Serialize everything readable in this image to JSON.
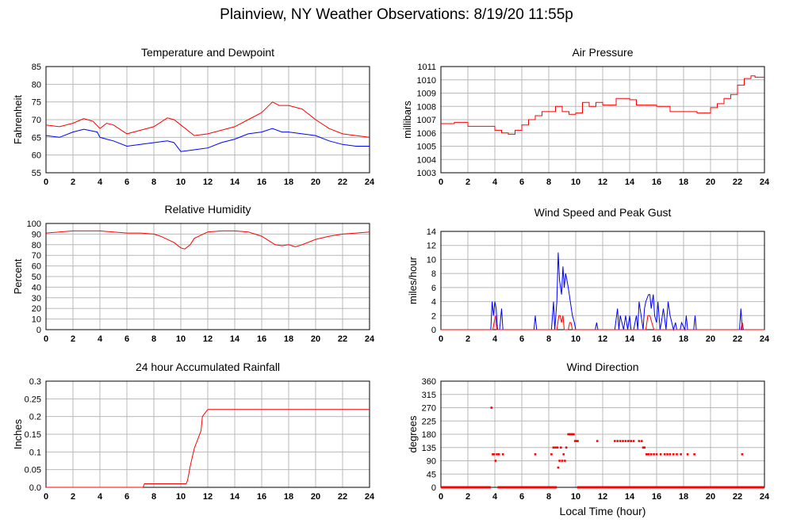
{
  "page": {
    "title": "Plainview, NY Weather Observations: 8/19/20 11:55p"
  },
  "chart_data": [
    {
      "id": "temp",
      "type": "line",
      "title": "Temperature and Dewpoint",
      "ylabel": "Fahrenheit",
      "xlabel": "",
      "xlim": [
        0,
        24
      ],
      "ylim": [
        55,
        85
      ],
      "yticks": [
        55,
        60,
        65,
        70,
        75,
        80,
        85
      ],
      "xticks": [
        0,
        2,
        4,
        6,
        8,
        10,
        12,
        14,
        16,
        18,
        20,
        22,
        24
      ],
      "grid": true,
      "series": [
        {
          "color": "#ff0000",
          "step": false,
          "x": [
            0,
            1,
            2,
            2.8,
            3.5,
            4,
            4.5,
            5,
            6,
            7,
            8,
            9,
            9.5,
            10,
            11,
            12,
            13,
            14,
            15,
            16,
            16.8,
            17.3,
            18,
            19,
            20,
            21,
            22,
            23,
            24
          ],
          "y": [
            68.5,
            68,
            69,
            70.3,
            69.5,
            67.5,
            69,
            68.5,
            66,
            67,
            68,
            70.5,
            70,
            68.5,
            65.5,
            66,
            67,
            68,
            70,
            72,
            75,
            74,
            74,
            73,
            70,
            67.5,
            66,
            65.5,
            65
          ]
        },
        {
          "color": "#0000ff",
          "step": false,
          "x": [
            0,
            1,
            2,
            2.8,
            3.8,
            4,
            4.5,
            5,
            6,
            7,
            8,
            9,
            9.5,
            10,
            11,
            12,
            13,
            14,
            15,
            16,
            16.8,
            17.5,
            18,
            19,
            20,
            21,
            22,
            23,
            24
          ],
          "y": [
            65.5,
            65,
            66.5,
            67.3,
            66.5,
            65,
            64.5,
            64,
            62.5,
            63,
            63.5,
            64,
            63.5,
            61,
            61.5,
            62,
            63.5,
            64.5,
            66,
            66.5,
            67.5,
            66.5,
            66.5,
            66,
            65.5,
            64,
            63,
            62.5,
            62.5
          ]
        }
      ]
    },
    {
      "id": "pressure",
      "type": "line",
      "title": "Air Pressure",
      "ylabel": "millibars",
      "xlabel": "",
      "xlim": [
        0,
        24
      ],
      "ylim": [
        1003,
        1011
      ],
      "yticks": [
        1003,
        1004,
        1005,
        1006,
        1007,
        1008,
        1009,
        1010,
        1011
      ],
      "xticks": [
        0,
        2,
        4,
        6,
        8,
        10,
        12,
        14,
        16,
        18,
        20,
        22,
        24
      ],
      "grid": true,
      "series": [
        {
          "color": "#ff0000",
          "step": true,
          "x": [
            0,
            1,
            2,
            3,
            4,
            4.5,
            5,
            5.5,
            6,
            6.5,
            7,
            7.5,
            8,
            8.5,
            9,
            9.5,
            10,
            10.5,
            11,
            11.5,
            12,
            13,
            14,
            14.5,
            15,
            16,
            17,
            18,
            19,
            20,
            20.5,
            21,
            21.5,
            22,
            22.5,
            23,
            23.3,
            24
          ],
          "y": [
            1006.7,
            1006.8,
            1006.5,
            1006.5,
            1006.2,
            1006,
            1005.9,
            1006.2,
            1006.6,
            1007,
            1007.3,
            1007.6,
            1007.6,
            1008,
            1007.6,
            1007.4,
            1007.5,
            1008.3,
            1008,
            1008.3,
            1008.1,
            1008.6,
            1008.5,
            1008.1,
            1008.1,
            1008,
            1007.6,
            1007.6,
            1007.5,
            1007.9,
            1008.2,
            1008.6,
            1008.9,
            1009.6,
            1010.1,
            1010.3,
            1010.2,
            1010.2
          ]
        }
      ]
    },
    {
      "id": "humidity",
      "type": "line",
      "title": "Relative Humidity",
      "ylabel": "Percent",
      "xlabel": "",
      "xlim": [
        0,
        24
      ],
      "ylim": [
        0,
        100
      ],
      "yticks": [
        0,
        10,
        20,
        30,
        40,
        50,
        60,
        70,
        80,
        90,
        100
      ],
      "xticks": [
        0,
        2,
        4,
        6,
        8,
        10,
        12,
        14,
        16,
        18,
        20,
        22,
        24
      ],
      "grid": true,
      "series": [
        {
          "color": "#ff0000",
          "step": false,
          "x": [
            0,
            1,
            2,
            3,
            4,
            5,
            6,
            7,
            8,
            8.5,
            9,
            9.5,
            10,
            10.3,
            10.7,
            11,
            11.5,
            12,
            13,
            14,
            15,
            15.5,
            16,
            16.5,
            17,
            17.5,
            18,
            18.5,
            19,
            20,
            21,
            22,
            23,
            24
          ],
          "y": [
            91,
            92,
            93,
            93,
            93,
            92,
            91,
            91,
            90,
            88,
            85,
            82,
            77,
            76,
            80,
            86,
            89,
            92,
            93,
            93,
            92,
            90,
            88,
            84,
            80,
            79,
            80,
            78,
            80,
            85,
            88,
            90,
            91,
            92
          ]
        }
      ]
    },
    {
      "id": "wind",
      "type": "line",
      "title": "Wind Speed and Peak Gust",
      "ylabel": "miles/hour",
      "xlabel": "",
      "xlim": [
        0,
        24
      ],
      "ylim": [
        0,
        14
      ],
      "yticks": [
        0,
        2,
        4,
        6,
        8,
        10,
        12,
        14
      ],
      "xticks": [
        0,
        2,
        4,
        6,
        8,
        10,
        12,
        14,
        16,
        18,
        20,
        22,
        24
      ],
      "grid": true,
      "series": [
        {
          "color": "#0000ff",
          "step": false,
          "x": [
            0,
            3.7,
            3.8,
            3.9,
            4.0,
            4.1,
            4.2,
            4.35,
            4.5,
            4.6,
            4.7,
            6.9,
            7.0,
            7.1,
            8.2,
            8.35,
            8.45,
            8.6,
            8.7,
            8.8,
            8.95,
            9.05,
            9.15,
            9.25,
            9.35,
            9.45,
            9.6,
            9.75,
            9.9,
            10.0,
            10.05,
            11.45,
            11.55,
            11.65,
            12.9,
            13.1,
            13.2,
            13.3,
            13.55,
            13.7,
            13.85,
            14.0,
            14.1,
            14.3,
            14.5,
            14.6,
            14.7,
            15.0,
            15.1,
            15.2,
            15.4,
            15.5,
            15.6,
            15.75,
            15.85,
            16.0,
            16.1,
            16.25,
            16.35,
            16.5,
            16.7,
            16.85,
            17.0,
            17.25,
            17.4,
            17.5,
            17.75,
            17.85,
            18.1,
            18.2,
            18.3,
            18.75,
            18.85,
            18.95,
            22.15,
            22.25,
            22.35,
            22.45,
            24
          ],
          "y": [
            0,
            0,
            4,
            2,
            4,
            3,
            0,
            0,
            3,
            0,
            0,
            0,
            2,
            0,
            0,
            4,
            0,
            4,
            11,
            7,
            5,
            9,
            6,
            8,
            7,
            6,
            4,
            2,
            1,
            0,
            0,
            0,
            1,
            0,
            0,
            3,
            0,
            2,
            0,
            2,
            0,
            2,
            0,
            0,
            2,
            0,
            4,
            0,
            3,
            4,
            5,
            5,
            3,
            5,
            2,
            1,
            4,
            0,
            1,
            3,
            0,
            4,
            2,
            0,
            1,
            0,
            0,
            1,
            0,
            2,
            0,
            0,
            2,
            0,
            0,
            3,
            0,
            0,
            0
          ]
        },
        {
          "color": "#ff0000",
          "step": false,
          "x": [
            0,
            3.85,
            3.95,
            4.05,
            4.15,
            8.6,
            8.75,
            8.85,
            8.95,
            9.05,
            9.15,
            9.45,
            9.55,
            9.65,
            9.75,
            15.2,
            15.35,
            15.5,
            15.65,
            15.8,
            22.25,
            22.35,
            22.45,
            24
          ],
          "y": [
            0,
            0,
            1,
            2,
            0,
            0,
            2,
            2,
            1,
            2,
            0,
            0,
            1,
            1,
            0,
            0,
            2,
            2,
            1,
            0,
            0,
            1,
            0,
            0
          ]
        }
      ]
    },
    {
      "id": "rain",
      "type": "line",
      "title": "24 hour Accumulated Rainfall",
      "ylabel": "Inches",
      "xlabel": "",
      "xlim": [
        0,
        24
      ],
      "ylim": [
        0,
        0.3
      ],
      "yticks": [
        0,
        0.05,
        0.1,
        0.15,
        0.2,
        0.25,
        0.3
      ],
      "yticklabels": [
        "0.0",
        "0.05",
        "0.1",
        "0.15",
        "0.2",
        "0.25",
        "0.3"
      ],
      "xticks": [
        0,
        2,
        4,
        6,
        8,
        10,
        12,
        14,
        16,
        18,
        20,
        22,
        24
      ],
      "grid": true,
      "series": [
        {
          "color": "#ff0000",
          "step": false,
          "x": [
            0,
            7.2,
            7.3,
            10.4,
            10.5,
            10.7,
            11.0,
            11.3,
            11.5,
            11.6,
            11.8,
            12.0,
            12.3,
            24
          ],
          "y": [
            0,
            0,
            0.01,
            0.01,
            0.02,
            0.06,
            0.11,
            0.14,
            0.16,
            0.2,
            0.21,
            0.22,
            0.22,
            0.22
          ]
        }
      ]
    },
    {
      "id": "direction",
      "type": "scatter",
      "title": "Wind Direction",
      "ylabel": "degrees",
      "xlabel": "Local Time (hour)",
      "xlim": [
        0,
        24
      ],
      "ylim": [
        0,
        360
      ],
      "yticks": [
        0,
        45,
        90,
        135,
        180,
        225,
        270,
        315,
        360
      ],
      "xticks": [
        0,
        2,
        4,
        6,
        8,
        10,
        12,
        14,
        16,
        18,
        20,
        22,
        24
      ],
      "grid": true,
      "series": [
        {
          "color": "#ff0000",
          "zero_ranges": [
            [
              0,
              3.7
            ],
            [
              4.2,
              8.6
            ],
            [
              10.1,
              24
            ]
          ],
          "x": [
            3.75,
            3.85,
            3.95,
            4.05,
            4.15,
            4.3,
            4.6,
            7.0,
            8.2,
            8.35,
            8.5,
            8.65,
            8.7,
            8.8,
            8.9,
            9.0,
            9.1,
            9.2,
            9.3,
            9.45,
            9.55,
            9.65,
            9.75,
            9.85,
            9.95,
            10.05,
            10.15,
            11.6,
            12.9,
            13.1,
            13.3,
            13.5,
            13.7,
            13.9,
            14.1,
            14.3,
            14.7,
            14.9,
            15.0,
            15.1,
            15.25,
            15.4,
            15.6,
            15.8,
            16.0,
            16.3,
            16.6,
            16.8,
            17.0,
            17.25,
            17.5,
            17.8,
            18.3,
            18.8,
            22.35
          ],
          "y": [
            270,
            112,
            112,
            90,
            112,
            112,
            112,
            112,
            112,
            135,
            135,
            135,
            67,
            90,
            135,
            90,
            112,
            90,
            135,
            180,
            180,
            180,
            180,
            180,
            157,
            157,
            157,
            157,
            157,
            157,
            157,
            157,
            157,
            157,
            157,
            157,
            157,
            157,
            135,
            135,
            112,
            112,
            112,
            112,
            112,
            112,
            112,
            112,
            112,
            112,
            112,
            112,
            112,
            112,
            112
          ]
        }
      ]
    }
  ]
}
